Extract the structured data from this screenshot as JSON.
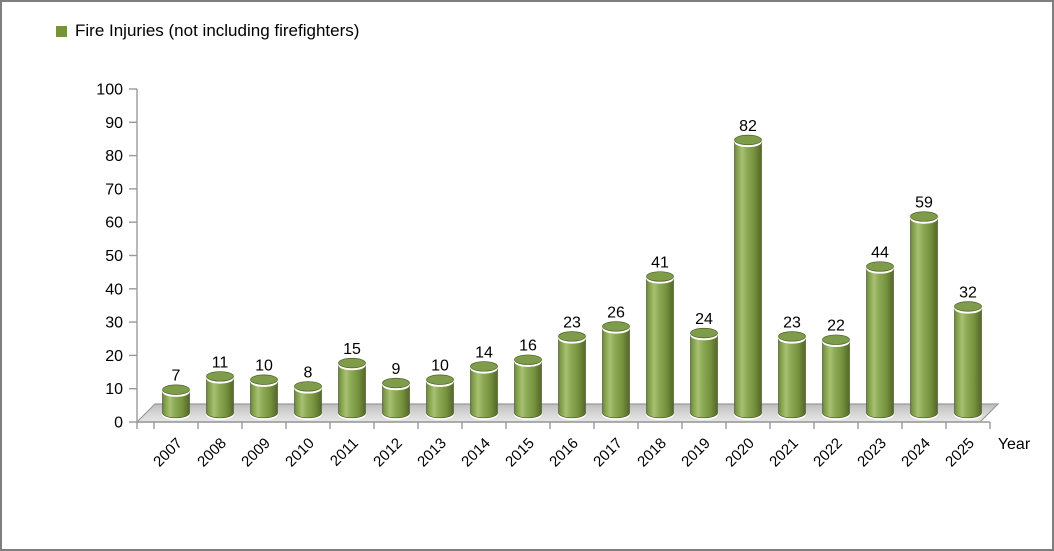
{
  "legend": {
    "label": "Fire Injuries (not including firefighters)"
  },
  "colors": {
    "bar": "#77933C",
    "bar_dark_edge": "#4E6228",
    "bar_highlight": "#A8C172",
    "bar_top": "#7E9C4A",
    "axis": "#9A9A9A",
    "floor_light": "#E6E6E6",
    "floor_dark": "#BEBEBE",
    "text": "#000000",
    "frame_border": "#7F7F7F"
  },
  "chart_data": {
    "type": "bar",
    "subtype": "3d-cylinder",
    "title": "",
    "xlabel": "Year",
    "ylabel": "",
    "categories": [
      "2007",
      "2008",
      "2009",
      "2010",
      "2011",
      "2012",
      "2013",
      "2014",
      "2015",
      "2016",
      "2017",
      "2018",
      "2019",
      "2020",
      "2021",
      "2022",
      "2023",
      "2024",
      "2025"
    ],
    "series": [
      {
        "name": "Fire Injuries (not including firefighters)",
        "values": [
          7,
          11,
          10,
          8,
          15,
          9,
          10,
          14,
          16,
          23,
          26,
          41,
          24,
          82,
          23,
          22,
          44,
          59,
          32
        ]
      }
    ],
    "ylim": [
      0,
      100
    ],
    "ytick_step": 10,
    "grid": false,
    "data_labels": true,
    "legend_position": "top-left",
    "x_tick_label_rotation_deg": -45
  }
}
